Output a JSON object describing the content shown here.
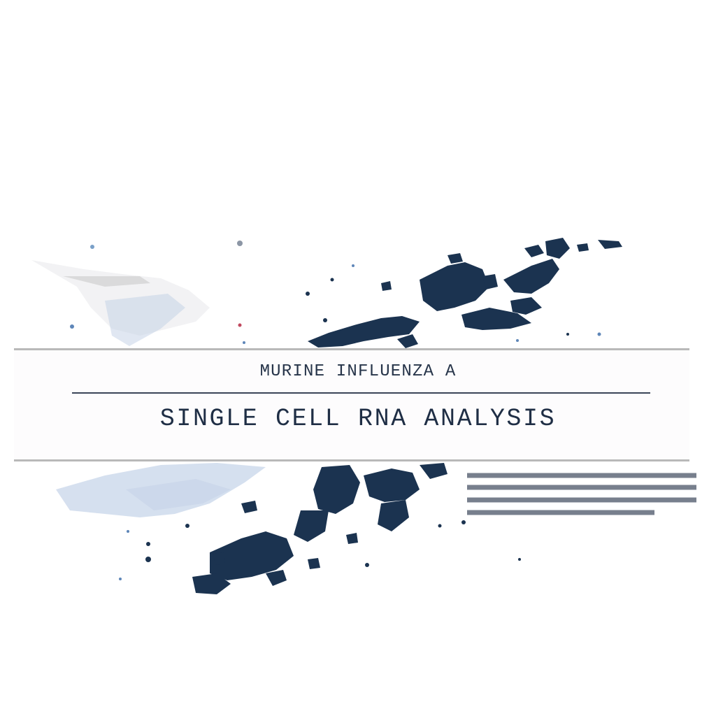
{
  "artwork": {
    "heading": "MURINE INFLUENZA A",
    "title": "SINGLE CELL RNA ANALYSIS",
    "colors": {
      "background": "#ffffff",
      "band": "#fdfcfd",
      "band_border": "#b9b9b9",
      "heading_text": "#27354a",
      "title_text": "#1f2e45",
      "rule": "#3a4558",
      "cluster_dark": "#1b3350",
      "cluster_light": "#9eb4d2"
    }
  }
}
